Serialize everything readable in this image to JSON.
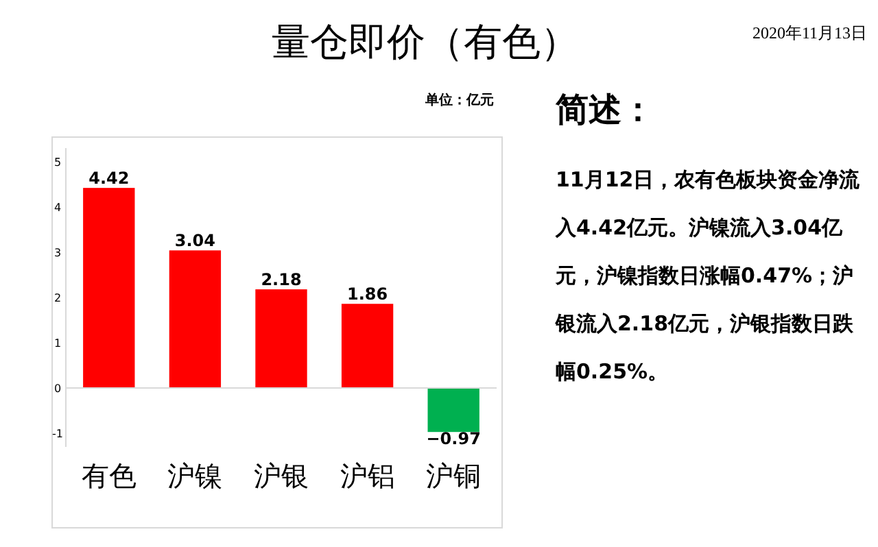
{
  "chart_data": {
    "type": "bar",
    "title": "量仓即价（有色）",
    "ylabel": "单位：亿元",
    "categories": [
      "有色",
      "沪镍",
      "沪银",
      "沪铝",
      "沪铜"
    ],
    "values": [
      4.42,
      3.04,
      2.18,
      1.86,
      -0.97
    ],
    "colors": [
      "#ff0000",
      "#ff0000",
      "#ff0000",
      "#ff0000",
      "#00b050"
    ],
    "ylim": [
      -1.3,
      5.3
    ],
    "yticks": [
      -1,
      0,
      1,
      2,
      3,
      4,
      5
    ],
    "data_labels": true,
    "annotations": [
      "2020年11月13日",
      "简述：",
      "11月12日，农有色板块资金净流入4.42亿元。沪镍流入3.04亿元，沪镍指数日涨幅0.47%；沪银流入2.18亿元，沪银指数日跌幅0.25%。"
    ]
  }
}
